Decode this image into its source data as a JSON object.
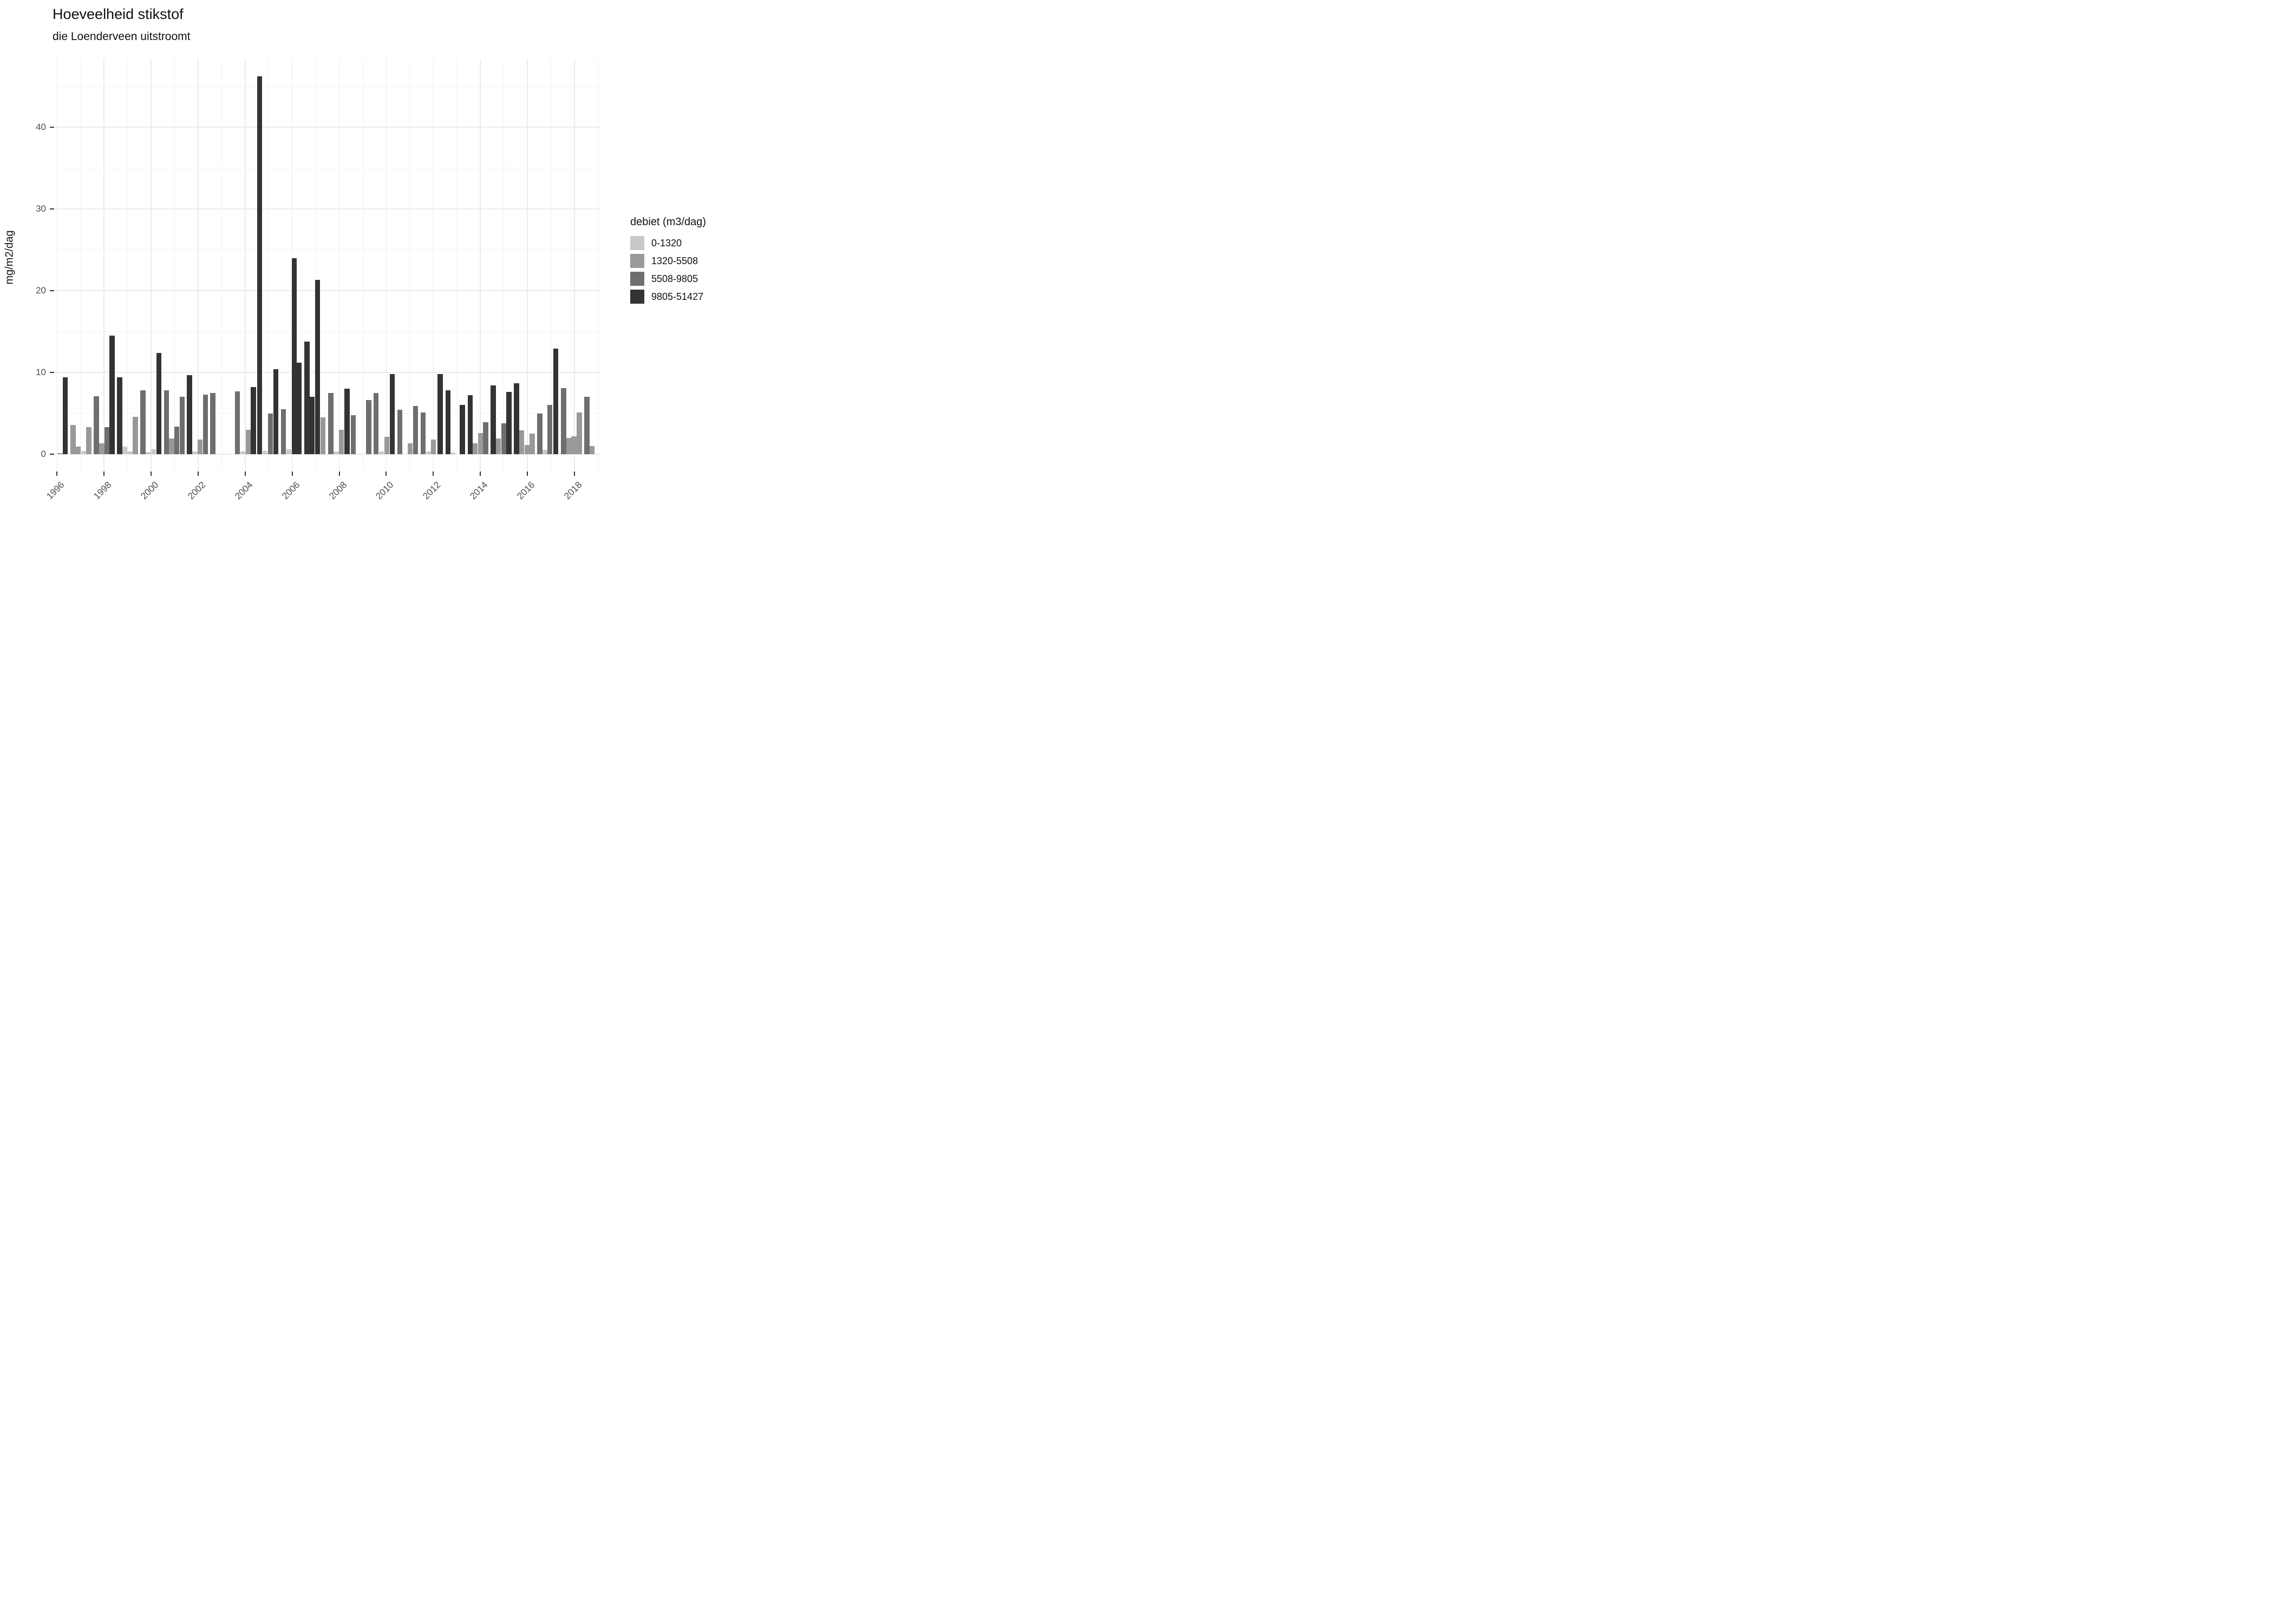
{
  "title": "Hoeveelheid stikstof",
  "subtitle": "die Loenderveen uitstroomt",
  "chart_data": {
    "type": "bar",
    "title": "Hoeveelheid stikstof",
    "subtitle": "die Loenderveen uitstroomt",
    "xlabel": "",
    "ylabel": "mg/m2/dag",
    "legend_title": "debiet (m3/dag)",
    "legend_position": "right",
    "grid": true,
    "x_tick_labels": [
      "1996",
      "1998",
      "2000",
      "2002",
      "2004",
      "2006",
      "2008",
      "2010",
      "2012",
      "2014",
      "2016",
      "2018"
    ],
    "x_tick_years": [
      1996,
      1998,
      2000,
      2002,
      2004,
      2006,
      2008,
      2010,
      2012,
      2014,
      2016,
      2018
    ],
    "x_minor_years": [
      1997,
      1999,
      2001,
      2003,
      2005,
      2007,
      2009,
      2011,
      2013,
      2015,
      2017,
      2019
    ],
    "y_ticks": [
      0,
      10,
      20,
      30,
      40
    ],
    "y_minor": [
      5,
      15,
      25,
      35,
      45
    ],
    "xlim": [
      1995.9,
      2019.13
    ],
    "ylim": [
      -2.1,
      48.3
    ],
    "bar_width_years": 0.215,
    "categories": [
      {
        "label": "0-1320",
        "color": "#c8c8c8"
      },
      {
        "label": "1320-5508",
        "color": "#999999"
      },
      {
        "label": "5508-9805",
        "color": "#6e6e6e"
      },
      {
        "label": "9805-51427",
        "color": "#333333"
      }
    ],
    "bars_format": [
      "x_year",
      "value_mg_m2_dag",
      "debiet_category_index"
    ],
    "bars": [
      [
        1996.13,
        0.15,
        2
      ],
      [
        1996.35,
        9.4,
        4
      ],
      [
        1996.68,
        3.6,
        2
      ],
      [
        1996.9,
        0.9,
        2
      ],
      [
        1997.13,
        0.4,
        1
      ],
      [
        1997.35,
        3.3,
        2
      ],
      [
        1997.67,
        7.1,
        3
      ],
      [
        1997.9,
        1.3,
        2
      ],
      [
        1998.12,
        3.3,
        3
      ],
      [
        1998.34,
        14.5,
        4
      ],
      [
        1998.66,
        9.4,
        4
      ],
      [
        1998.88,
        0.9,
        1
      ],
      [
        1999.1,
        0.3,
        1
      ],
      [
        1999.33,
        4.6,
        2
      ],
      [
        1999.65,
        7.8,
        3
      ],
      [
        1999.88,
        0.25,
        1
      ],
      [
        2000.1,
        0.6,
        1
      ],
      [
        2000.33,
        12.4,
        4
      ],
      [
        2000.65,
        7.8,
        3
      ],
      [
        2000.87,
        1.9,
        2
      ],
      [
        2001.09,
        3.4,
        3
      ],
      [
        2001.32,
        7.0,
        3
      ],
      [
        2001.63,
        9.7,
        4
      ],
      [
        2001.86,
        0.3,
        1
      ],
      [
        2002.08,
        1.8,
        2
      ],
      [
        2002.31,
        7.3,
        3
      ],
      [
        2002.62,
        7.5,
        3
      ],
      [
        2003.67,
        7.7,
        3
      ],
      [
        2003.91,
        0.35,
        1
      ],
      [
        2004.13,
        3.0,
        2
      ],
      [
        2004.35,
        8.2,
        4
      ],
      [
        2004.62,
        46.2,
        4
      ],
      [
        2004.85,
        0.4,
        1
      ],
      [
        2005.08,
        5.0,
        3
      ],
      [
        2005.31,
        10.4,
        4
      ],
      [
        2005.62,
        5.5,
        3
      ],
      [
        2005.85,
        0.6,
        1
      ],
      [
        2006.08,
        24.0,
        4
      ],
      [
        2006.3,
        11.2,
        4
      ],
      [
        2006.63,
        13.8,
        4
      ],
      [
        2006.85,
        7.0,
        4
      ],
      [
        2007.08,
        21.3,
        4
      ],
      [
        2007.31,
        4.5,
        2
      ],
      [
        2007.64,
        7.5,
        3
      ],
      [
        2007.87,
        0.35,
        1
      ],
      [
        2008.09,
        3.0,
        2
      ],
      [
        2008.33,
        8.0,
        4
      ],
      [
        2008.6,
        4.8,
        3
      ],
      [
        2009.25,
        6.6,
        3
      ],
      [
        2009.57,
        7.5,
        3
      ],
      [
        2009.8,
        0.3,
        1
      ],
      [
        2010.03,
        2.1,
        2
      ],
      [
        2010.25,
        9.8,
        4
      ],
      [
        2010.57,
        5.4,
        3
      ],
      [
        2011.02,
        1.3,
        2
      ],
      [
        2011.24,
        5.9,
        3
      ],
      [
        2011.57,
        5.1,
        3
      ],
      [
        2011.79,
        0.3,
        1
      ],
      [
        2012.01,
        1.8,
        2
      ],
      [
        2012.29,
        9.8,
        4
      ],
      [
        2012.62,
        7.8,
        4
      ],
      [
        2012.84,
        0.2,
        1
      ],
      [
        2013.24,
        6.0,
        4
      ],
      [
        2013.57,
        7.2,
        4
      ],
      [
        2013.78,
        1.3,
        2
      ],
      [
        2014.01,
        2.6,
        2
      ],
      [
        2014.23,
        3.9,
        3
      ],
      [
        2014.55,
        8.4,
        4
      ],
      [
        2014.77,
        1.9,
        2
      ],
      [
        2015.0,
        3.8,
        3
      ],
      [
        2015.22,
        7.6,
        4
      ],
      [
        2015.54,
        8.7,
        4
      ],
      [
        2015.76,
        2.9,
        2
      ],
      [
        2016.0,
        1.1,
        2
      ],
      [
        2016.21,
        2.5,
        2
      ],
      [
        2016.53,
        5.0,
        3
      ],
      [
        2016.75,
        0.5,
        1
      ],
      [
        2016.96,
        6.0,
        3
      ],
      [
        2017.21,
        12.9,
        4
      ],
      [
        2017.54,
        8.1,
        3
      ],
      [
        2017.76,
        2.0,
        2
      ],
      [
        2017.98,
        2.2,
        2
      ],
      [
        2018.21,
        5.1,
        2
      ],
      [
        2018.53,
        7.0,
        3
      ],
      [
        2018.75,
        1.0,
        2
      ]
    ]
  },
  "legend": {
    "title": "debiet (m3/dag)",
    "items": [
      "0-1320",
      "1320-5508",
      "5508-9805",
      "9805-51427"
    ]
  },
  "axes": {
    "y_title": "mg/m2/dag",
    "y_tick_labels": [
      "0",
      "10",
      "20",
      "30",
      "40"
    ]
  }
}
